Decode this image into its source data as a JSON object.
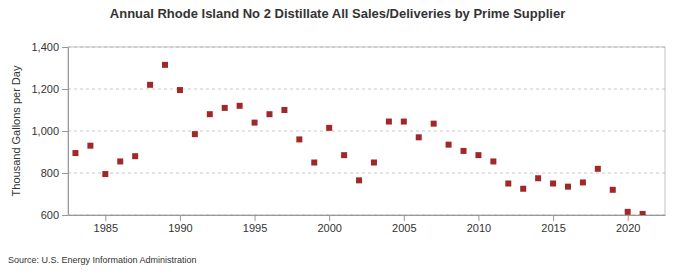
{
  "chart_data": {
    "type": "scatter",
    "title": "Annual Rhode Island No 2 Distillate All Sales/Deliveries by Prime Supplier",
    "y_label": "Thousand Gallons per Day",
    "source": "Source: U.S. Energy Information Administration",
    "x": [
      1983,
      1984,
      1985,
      1986,
      1987,
      1988,
      1989,
      1990,
      1991,
      1992,
      1993,
      1994,
      1995,
      1996,
      1997,
      1998,
      1999,
      2000,
      2001,
      2002,
      2003,
      2004,
      2005,
      2006,
      2007,
      2008,
      2009,
      2010,
      2011,
      2012,
      2013,
      2014,
      2015,
      2016,
      2017,
      2018,
      2019,
      2020,
      2021
    ],
    "values": [
      895,
      930,
      795,
      855,
      880,
      1220,
      1315,
      1195,
      985,
      1080,
      1110,
      1120,
      1040,
      1080,
      1100,
      960,
      850,
      1015,
      885,
      765,
      850,
      1045,
      1045,
      970,
      1035,
      935,
      905,
      885,
      855,
      750,
      725,
      775,
      750,
      735,
      755,
      820,
      720,
      615,
      605
    ],
    "color": "#a0282a",
    "marker": "square",
    "grid": true,
    "xlim": [
      1982.5,
      2022.5
    ],
    "xticks": [
      1985,
      1990,
      1995,
      2000,
      2005,
      2010,
      2015,
      2020
    ],
    "ylim": [
      600,
      1400
    ],
    "yticks": [
      600,
      800,
      {
        "value": 1000,
        "label": "1,000"
      },
      {
        "value": 1200,
        "label": "1,200"
      },
      {
        "value": 1400,
        "label": "1,400"
      }
    ]
  }
}
